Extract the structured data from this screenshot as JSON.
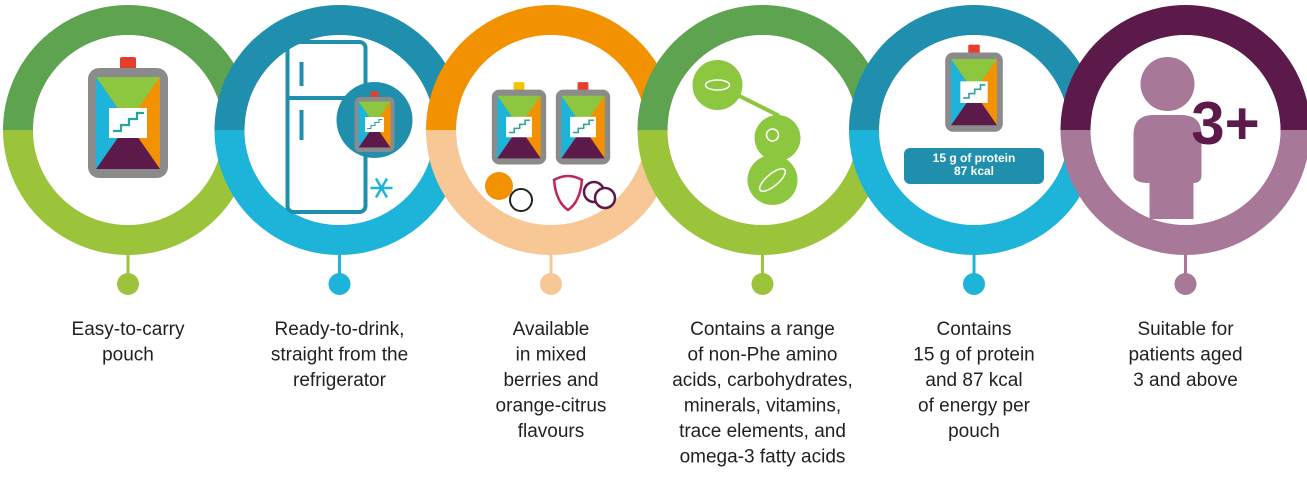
{
  "items": [
    {
      "caption": [
        "Easy-to-carry",
        "pouch"
      ]
    },
    {
      "caption": [
        "Ready-to-drink,",
        "straight from the",
        "refrigerator"
      ]
    },
    {
      "caption": [
        "Available",
        "in mixed",
        "berries and",
        "orange-citrus",
        "flavours"
      ]
    },
    {
      "caption": [
        "Contains a range",
        "of non-Phe amino",
        "acids, carbohydrates,",
        "minerals, vitamins,",
        "trace elements, and",
        "omega-3 fatty acids"
      ]
    },
    {
      "caption": [
        "Contains",
        "15 g of protein",
        "and 87 kcal",
        "of energy per",
        "pouch"
      ],
      "badge": [
        "15 g of protein",
        "87 kcal"
      ]
    },
    {
      "caption": [
        "Suitable for",
        "patients aged",
        "3 and above"
      ],
      "badge_text": "3+"
    }
  ]
}
